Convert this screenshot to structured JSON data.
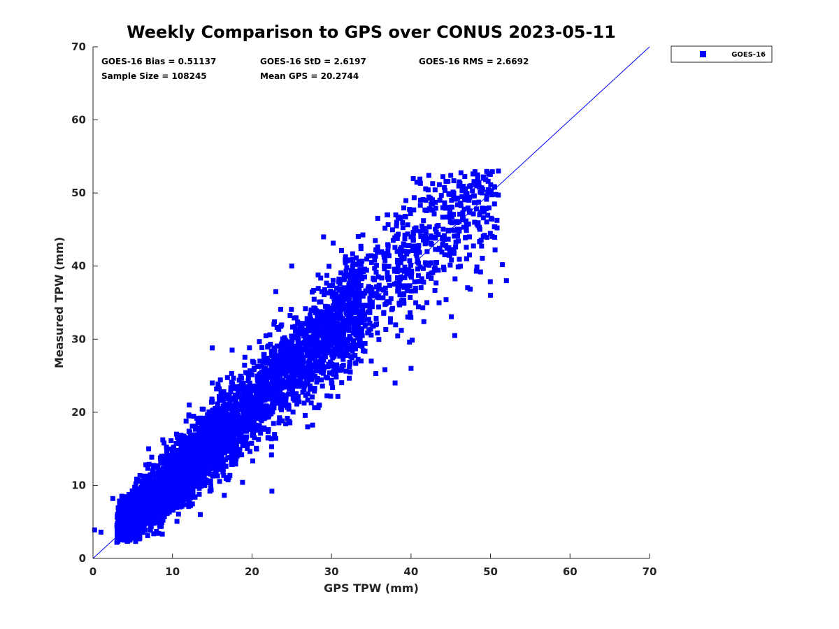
{
  "colors": {
    "series": "#0000ff",
    "axis": "#262626",
    "background": "#ffffff"
  },
  "stats": {
    "bias": "GOES-16 Bias = 0.51137",
    "std": "GOES-16 StD = 2.6197",
    "rms": "GOES-16 RMS = 2.6692",
    "sample_size": "Sample Size = 108245",
    "mean_gps": "Mean GPS = 20.2744"
  },
  "chart_data": {
    "type": "scatter",
    "title": "Weekly Comparison to GPS over CONUS 2023-05-11",
    "xlabel": "GPS TPW (mm)",
    "ylabel": "Measured TPW (mm)",
    "xlim": [
      0,
      70
    ],
    "ylim": [
      0,
      70
    ],
    "xticks": [
      0,
      10,
      20,
      30,
      40,
      50,
      60,
      70
    ],
    "yticks": [
      0,
      10,
      20,
      30,
      40,
      50,
      60,
      70
    ],
    "grid": false,
    "legend_position": "outside-top-right",
    "reference_line": {
      "name": "1:1 line",
      "from": [
        0,
        0
      ],
      "to": [
        70,
        70
      ]
    },
    "series": [
      {
        "name": "GOES-16",
        "marker": "square",
        "n_points": 108245,
        "bias": 0.51137,
        "std": 2.6197,
        "rms": 2.6692,
        "mean_x": 20.2744,
        "x_range": [
          0,
          52
        ],
        "y_range": [
          2,
          53
        ],
        "sample_points": [
          [
            0.2,
            3.9
          ],
          [
            1.0,
            3.6
          ],
          [
            2.5,
            8.2
          ],
          [
            3.0,
            2.2
          ],
          [
            4.0,
            2.5
          ],
          [
            5.0,
            4.0
          ],
          [
            6.0,
            7.5
          ],
          [
            7.0,
            15.0
          ],
          [
            9.0,
            14.0
          ],
          [
            10.5,
            17.0
          ],
          [
            12.0,
            11.0
          ],
          [
            13.5,
            6.0
          ],
          [
            15.0,
            24.0
          ],
          [
            15.0,
            28.8
          ],
          [
            17.5,
            28.5
          ],
          [
            20.0,
            22.0
          ],
          [
            21.0,
            27.0
          ],
          [
            22.0,
            16.5
          ],
          [
            22.5,
            9.2
          ],
          [
            23.0,
            36.5
          ],
          [
            25.0,
            40.0
          ],
          [
            27.0,
            18.0
          ],
          [
            29.0,
            44.0
          ],
          [
            30.0,
            24.0
          ],
          [
            32.5,
            39.0
          ],
          [
            35.0,
            27.0
          ],
          [
            37.0,
            47.0
          ],
          [
            38.0,
            24.0
          ],
          [
            40.0,
            26.0
          ],
          [
            40.0,
            44.0
          ],
          [
            42.0,
            35.0
          ],
          [
            44.0,
            48.0
          ],
          [
            45.0,
            52.4
          ],
          [
            45.5,
            30.5
          ],
          [
            47.0,
            41.0
          ],
          [
            48.0,
            46.0
          ],
          [
            50.0,
            36.0
          ],
          [
            50.5,
            48.5
          ],
          [
            51.0,
            53.0
          ],
          [
            51.5,
            40.2
          ],
          [
            52.0,
            38.0
          ]
        ]
      }
    ]
  }
}
